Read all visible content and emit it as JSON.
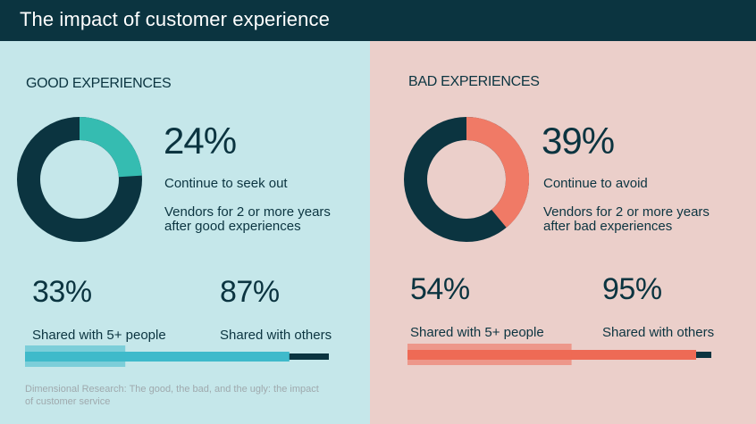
{
  "header": {
    "title": "The impact of customer experience"
  },
  "colors": {
    "dark": "#0b3440",
    "good_accent": "#35bcb1",
    "good_bar": "#3fbacb",
    "bad_accent": "#f07a66",
    "bad_bar": "#ee6a55",
    "good_bg": "#c5e7ea",
    "bad_bg": "#ebcfca"
  },
  "good": {
    "section_title": "GOOD EXPERIENCES",
    "percent": "24%",
    "line1": "Continue to seek out",
    "line2": "Vendors for 2 or more years",
    "line3": "after good experiences",
    "stat1": {
      "value": "33%",
      "label": "Shared with 5+ people"
    },
    "stat2": {
      "value": "87%",
      "label": "Shared with others"
    },
    "source": "Dimensional Research: The good, the bad, and the ugly: the impact of customer service"
  },
  "bad": {
    "section_title": "BAD EXPERIENCES",
    "percent": "39%",
    "line1": "Continue to avoid",
    "line2": "Vendors for 2 or more years",
    "line3": "after bad experiences",
    "stat1": {
      "value": "54%",
      "label": "Shared with 5+ people"
    },
    "stat2": {
      "value": "95%",
      "label": "Shared with others"
    }
  },
  "chart_data": [
    {
      "type": "pie",
      "categories": [
        "Continue to seek out",
        ""
      ],
      "values": [
        24,
        76
      ]
    },
    {
      "type": "pie",
      "categories": [
        "Continue to avoid",
        ""
      ],
      "values": [
        39,
        61
      ]
    },
    {
      "type": "bar",
      "categories": [
        "Shared with 5+ people",
        "Shared with others"
      ],
      "values": [
        33,
        87
      ],
      "ylim": [
        0,
        100
      ]
    },
    {
      "type": "bar",
      "categories": [
        "Shared with 5+ people",
        "Shared with others"
      ],
      "values": [
        54,
        95
      ],
      "ylim": [
        0,
        100
      ]
    }
  ]
}
